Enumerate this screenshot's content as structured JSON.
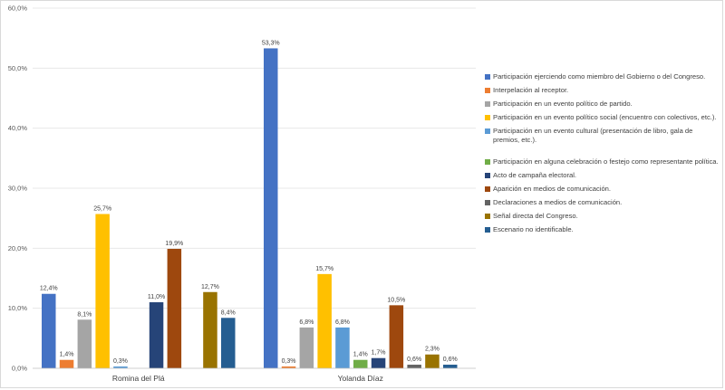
{
  "chart_data": {
    "type": "bar",
    "categories": [
      "Romina del Plá",
      "Yolanda Díaz"
    ],
    "ylim": [
      0,
      60
    ],
    "yticks": [
      "0,0%",
      "10,0%",
      "20,0%",
      "30,0%",
      "40,0%",
      "50,0%",
      "60,0%"
    ],
    "grid": true,
    "legend_position": "right",
    "series": [
      {
        "name": "Participación ejerciendo como miembro del Gobierno o del Congreso.",
        "color": "#4472c4",
        "values": [
          12.4,
          53.3
        ],
        "labels": [
          "12,4%",
          "53,3%"
        ]
      },
      {
        "name": "Interpelación al receptor.",
        "color": "#ed7d31",
        "values": [
          1.4,
          0.3
        ],
        "labels": [
          "1,4%",
          "0,3%"
        ]
      },
      {
        "name": "Participación en un evento político de partido.",
        "color": "#a5a5a5",
        "values": [
          8.1,
          6.8
        ],
        "labels": [
          "8,1%",
          "6,8%"
        ]
      },
      {
        "name": "Participación en un evento político social (encuentro con colectivos, etc.).",
        "color": "#ffc000",
        "values": [
          25.7,
          15.7
        ],
        "labels": [
          "25,7%",
          "15,7%"
        ]
      },
      {
        "name": "Participación en un evento cultural (presentación de libro, gala de premios, etc.).",
        "color": "#5b9bd5",
        "values": [
          0.3,
          6.8
        ],
        "labels": [
          "0,3%",
          "6,8%"
        ]
      },
      {
        "name": "Participación en alguna celebración o festejo como representante política.",
        "color": "#70ad47",
        "values": [
          0,
          1.4
        ],
        "labels": [
          "",
          "1,4%"
        ]
      },
      {
        "name": "Acto de campaña electoral.",
        "color": "#264478",
        "values": [
          11.0,
          1.7
        ],
        "labels": [
          "11,0%",
          "1,7%"
        ]
      },
      {
        "name": "Aparición en medios de comunicación.",
        "color": "#9e480e",
        "values": [
          19.9,
          10.5
        ],
        "labels": [
          "19,9%",
          "10,5%"
        ]
      },
      {
        "name": "Declaraciones a medios de comunicación.",
        "color": "#636363",
        "values": [
          0,
          0.6
        ],
        "labels": [
          "",
          "0,6%"
        ]
      },
      {
        "name": "Señal directa del Congreso.",
        "color": "#997300",
        "values": [
          12.7,
          2.3
        ],
        "labels": [
          "12,7%",
          "2,3%"
        ]
      },
      {
        "name": "Escenario no identificable.",
        "color": "#255e91",
        "values": [
          8.4,
          0.6
        ],
        "labels": [
          "8,4%",
          "0,6%"
        ]
      }
    ]
  }
}
